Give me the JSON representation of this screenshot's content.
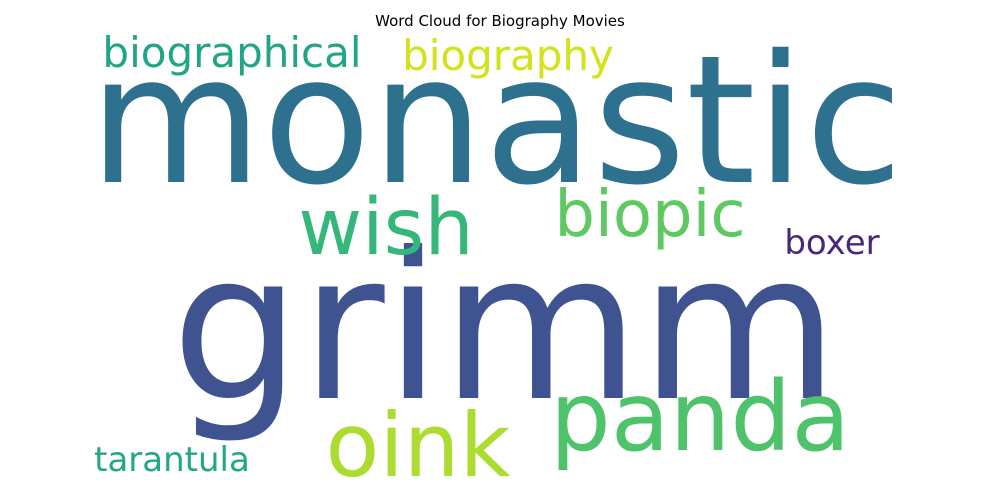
{
  "chart_data": {
    "type": "word_cloud",
    "title": "Word Cloud for Biography Movies",
    "words": [
      {
        "text": "grimm",
        "weight": 1.0,
        "color": "#3e5390"
      },
      {
        "text": "monastic",
        "weight": 0.92,
        "color": "#2d718e"
      },
      {
        "text": "panda",
        "weight": 0.6,
        "color": "#4ec36b"
      },
      {
        "text": "oink",
        "weight": 0.52,
        "color": "#addc30"
      },
      {
        "text": "wish",
        "weight": 0.47,
        "color": "#35b779"
      },
      {
        "text": "biopic",
        "weight": 0.38,
        "color": "#5ec962"
      },
      {
        "text": "biographical",
        "weight": 0.26,
        "color": "#21a685"
      },
      {
        "text": "biography",
        "weight": 0.26,
        "color": "#d2e21b"
      },
      {
        "text": "tarantula",
        "weight": 0.23,
        "color": "#22a884"
      },
      {
        "text": "boxer",
        "weight": 0.22,
        "color": "#482878"
      }
    ]
  }
}
